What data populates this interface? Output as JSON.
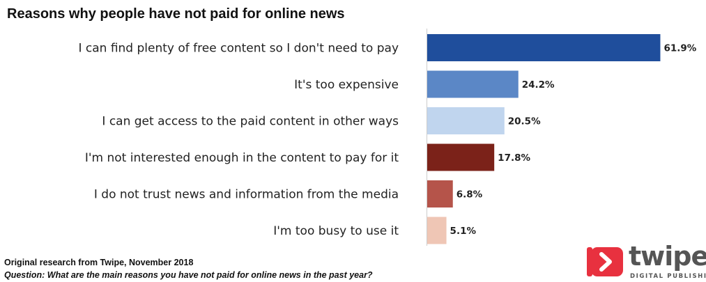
{
  "title": "Reasons why people have not paid for online news",
  "footer": {
    "source": "Original research from Twipe, November 2018",
    "question": "Question: What are the main reasons you have not paid for online news in the past year?"
  },
  "logo": {
    "name": "twipe",
    "tagline": "DIGITAL PUBLISHING",
    "icon": "play-chevron-icon",
    "color": "#e8313f"
  },
  "chart_data": {
    "type": "bar",
    "orientation": "horizontal",
    "title": "Reasons why people have not paid for online news",
    "categories": [
      "I can find plenty of free content so I don't need to pay",
      "It's too expensive",
      "I can get access to the paid content in other ways",
      "I'm not interested enough in the content to pay for it",
      "I do not trust news and information from the media",
      "I'm too busy to use it"
    ],
    "values": [
      61.9,
      24.2,
      20.5,
      17.8,
      6.8,
      5.1
    ],
    "value_labels": [
      "61.9%",
      "24.2%",
      "20.5%",
      "17.8%",
      "6.8%",
      "5.1%"
    ],
    "unit": "%",
    "colors": [
      "#1f4e9c",
      "#5b87c6",
      "#c0d5ee",
      "#7b2219",
      "#b5544a",
      "#efc6b5"
    ],
    "xlim": [
      0,
      62
    ],
    "grid": false,
    "legend": "none"
  }
}
